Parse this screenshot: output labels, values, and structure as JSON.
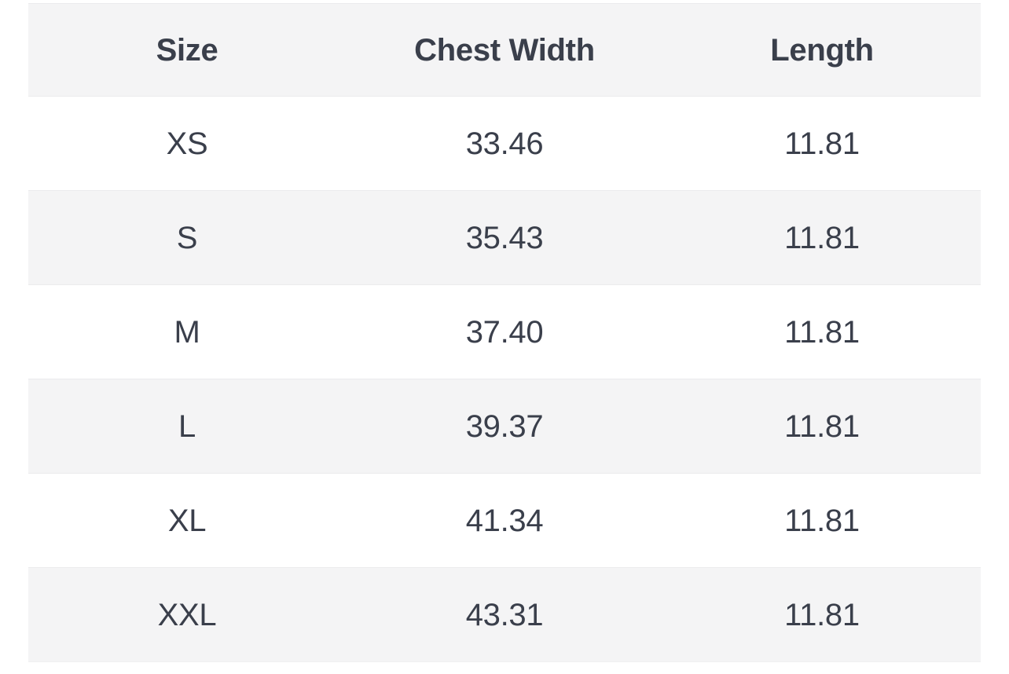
{
  "colors": {
    "page_background": "#ffffff",
    "row_alt_background": "#f4f4f5",
    "text": "#3a3f4b",
    "divider": "#ebebed"
  },
  "table": {
    "columns": [
      "Size",
      "Chest Width",
      "Length"
    ],
    "rows": [
      {
        "size": "XS",
        "chest_width": "33.46",
        "length": "11.81"
      },
      {
        "size": "S",
        "chest_width": "35.43",
        "length": "11.81"
      },
      {
        "size": "M",
        "chest_width": "37.40",
        "length": "11.81"
      },
      {
        "size": "L",
        "chest_width": "39.37",
        "length": "11.81"
      },
      {
        "size": "XL",
        "chest_width": "41.34",
        "length": "11.81"
      },
      {
        "size": "XXL",
        "chest_width": "43.31",
        "length": "11.81"
      }
    ]
  }
}
